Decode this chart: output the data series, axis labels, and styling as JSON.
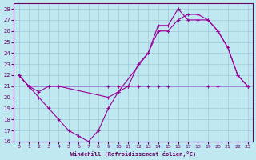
{
  "xlabel": "Windchill (Refroidissement éolien,°C)",
  "background_color": "#c0e8f0",
  "grid_color": "#a0c8d8",
  "line_color": "#990099",
  "xlim": [
    -0.5,
    23.5
  ],
  "ylim": [
    16,
    28.5
  ],
  "xticks": [
    0,
    1,
    2,
    3,
    4,
    5,
    6,
    7,
    8,
    9,
    10,
    11,
    12,
    13,
    14,
    15,
    16,
    17,
    18,
    19,
    20,
    21,
    22,
    23
  ],
  "yticks": [
    16,
    17,
    18,
    19,
    20,
    21,
    22,
    23,
    24,
    25,
    26,
    27,
    28
  ],
  "line1_x": [
    0,
    1,
    2,
    3,
    4,
    9,
    10,
    11,
    12,
    13,
    14,
    15,
    19,
    20,
    23
  ],
  "line1_y": [
    22,
    21,
    20.5,
    21,
    21,
    21,
    21,
    21,
    21,
    21,
    21,
    21,
    21,
    21,
    21
  ],
  "line2_x": [
    0,
    1,
    2,
    3,
    4,
    5,
    6,
    7,
    8,
    9,
    10,
    11,
    12,
    13,
    14,
    15,
    16,
    17,
    18,
    19,
    20,
    21,
    22,
    23
  ],
  "line2_y": [
    22,
    21,
    20,
    19,
    18,
    17,
    16.5,
    16,
    17,
    19,
    20.5,
    21,
    23,
    24,
    26.5,
    26.5,
    28,
    27,
    27,
    27,
    26,
    24.5,
    22,
    21
  ],
  "line3_x": [
    0,
    1,
    3,
    4,
    9,
    10,
    13,
    14,
    15,
    16,
    17,
    18,
    19,
    20,
    21,
    22,
    23
  ],
  "line3_y": [
    22,
    21,
    21,
    21,
    20,
    20.5,
    24,
    26,
    26,
    27,
    27.5,
    27.5,
    27,
    26,
    24.5,
    22,
    21
  ]
}
